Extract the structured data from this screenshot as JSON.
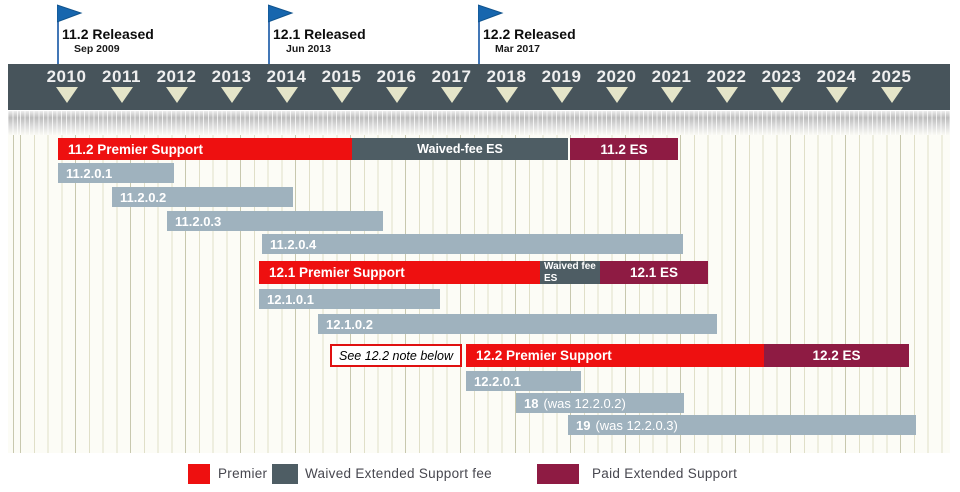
{
  "colors": {
    "premier_red": "#ee1010",
    "waived_slate": "#4e5d64",
    "paid_maroon": "#8e1b43",
    "version_gray": "#9fb2be",
    "header_slate": "#47545b",
    "flag_blue": "#1766ae",
    "flag_pole_blue": "#4377b6",
    "triangle_cream": "#e5e5c9",
    "grid_line": "#e0dfc8",
    "note_border_red": "#e01010"
  },
  "flags": [
    {
      "title": "11.2 Released",
      "date": "Sep 2009"
    },
    {
      "title": "12.1 Released",
      "date": "Jun 2013"
    },
    {
      "title": "12.2 Released",
      "date": "Mar 2017"
    }
  ],
  "timeline": {
    "years": [
      "2010",
      "2011",
      "2012",
      "2013",
      "2014",
      "2015",
      "2016",
      "2017",
      "2018",
      "2019",
      "2020",
      "2021",
      "2022",
      "2023",
      "2024",
      "2025"
    ]
  },
  "bars": {
    "r112": {
      "premier": "11.2 Premier Support",
      "waived": "Waived-fee ES",
      "es": "11.2 ES"
    },
    "v11201": "11.2.0.1",
    "v11202": "11.2.0.2",
    "v11203": "11.2.0.3",
    "v11204": "11.2.0.4",
    "r121": {
      "premier": "12.1 Premier Support",
      "waived_line1": "Waived fee",
      "waived_line2": "ES",
      "es": "12.1 ES"
    },
    "v12101": "12.1.0.1",
    "v12102": "12.1.0.2",
    "note": "See 12.2 note below",
    "r122": {
      "premier": "12.2 Premier Support",
      "es": "12.2 ES"
    },
    "v12201": "12.2.0.1",
    "v18": {
      "bold": "18",
      "rest": "(was 12.2.0.2)"
    },
    "v19": {
      "bold": "19",
      "rest": "(was 12.2.0.3)"
    }
  },
  "legend": {
    "items": [
      {
        "label": "Premier",
        "color": "#ee1010"
      },
      {
        "label": "Waived Extended Support fee",
        "color": "#4e5d64"
      },
      {
        "label": "Paid Extended Support",
        "color": "#8e1b43"
      }
    ]
  },
  "chart_data": {
    "type": "gantt",
    "x_axis": {
      "unit": "year",
      "ticks": [
        2010,
        2011,
        2012,
        2013,
        2014,
        2015,
        2016,
        2017,
        2018,
        2019,
        2020,
        2021,
        2022,
        2023,
        2024,
        2025
      ]
    },
    "milestones": [
      {
        "label": "11.2 Released",
        "date": "Sep 2009",
        "x_year": 2009.7
      },
      {
        "label": "12.1 Released",
        "date": "Jun 2013",
        "x_year": 2013.45
      },
      {
        "label": "12.2 Released",
        "date": "Mar 2017",
        "x_year": 2017.2
      }
    ],
    "rows": [
      {
        "name": "11.2 support",
        "segments": [
          {
            "label": "11.2 Premier Support",
            "kind": "premier",
            "start": 2009.7,
            "end": 2015.0
          },
          {
            "label": "Waived-fee ES",
            "kind": "waived",
            "start": 2015.0,
            "end": 2019.0
          },
          {
            "label": "11.2 ES",
            "kind": "paid",
            "start": 2019.0,
            "end": 2021.0
          }
        ]
      },
      {
        "name": "11.2.0.1",
        "segments": [
          {
            "label": "11.2.0.1",
            "kind": "version",
            "start": 2009.7,
            "end": 2011.65
          }
        ]
      },
      {
        "name": "11.2.0.2",
        "segments": [
          {
            "label": "11.2.0.2",
            "kind": "version",
            "start": 2010.65,
            "end": 2013.8
          }
        ]
      },
      {
        "name": "11.2.0.3",
        "segments": [
          {
            "label": "11.2.0.3",
            "kind": "version",
            "start": 2011.65,
            "end": 2015.45
          }
        ]
      },
      {
        "name": "11.2.0.4",
        "segments": [
          {
            "label": "11.2.0.4",
            "kind": "version",
            "start": 2013.4,
            "end": 2020.9
          }
        ]
      },
      {
        "name": "12.1 support",
        "segments": [
          {
            "label": "12.1 Premier Support",
            "kind": "premier",
            "start": 2013.35,
            "end": 2018.4
          },
          {
            "label": "Waived fee ES",
            "kind": "waived",
            "start": 2018.45,
            "end": 2019.55
          },
          {
            "label": "12.1 ES",
            "kind": "paid",
            "start": 2019.55,
            "end": 2021.5
          }
        ]
      },
      {
        "name": "12.1.0.1",
        "segments": [
          {
            "label": "12.1.0.1",
            "kind": "version",
            "start": 2013.35,
            "end": 2016.5
          }
        ]
      },
      {
        "name": "12.1.0.2",
        "segments": [
          {
            "label": "12.1.0.2",
            "kind": "version",
            "start": 2014.4,
            "end": 2021.5
          }
        ]
      },
      {
        "name": "12.2 support",
        "annotation": "See 12.2 note below",
        "segments": [
          {
            "label": "12.2 Premier Support",
            "kind": "premier",
            "start": 2017.1,
            "end": 2022.5
          },
          {
            "label": "12.2 ES",
            "kind": "paid",
            "start": 2022.5,
            "end": 2025.15
          }
        ]
      },
      {
        "name": "12.2.0.1",
        "segments": [
          {
            "label": "12.2.0.1",
            "kind": "version",
            "start": 2017.1,
            "end": 2019.05
          }
        ]
      },
      {
        "name": "18 (was 12.2.0.2)",
        "segments": [
          {
            "label": "18 (was 12.2.0.2)",
            "kind": "version",
            "start": 2018.0,
            "end": 2020.9
          }
        ]
      },
      {
        "name": "19 (was 12.2.0.3)",
        "segments": [
          {
            "label": "19 (was 12.2.0.3)",
            "kind": "version",
            "start": 2019.0,
            "end": 2025.15
          }
        ]
      }
    ],
    "legend": [
      "Premier",
      "Waived Extended Support fee",
      "Paid Extended Support"
    ]
  }
}
